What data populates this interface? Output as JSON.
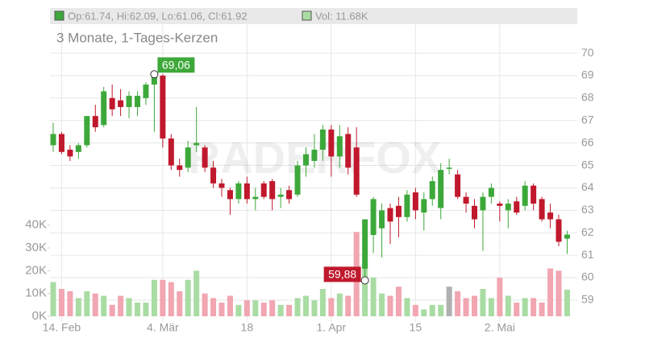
{
  "chart_data": {
    "type": "candlestick",
    "title": "3 Monate, 1-Tages-Kerzen",
    "header": [
      "Op:61.74, Hi:62.09, Lo:61.06, Cl:61.92",
      "Vol: 11.68K"
    ],
    "watermark": "RADERFOX",
    "categories": [
      null,
      "14. Feb",
      null,
      null,
      null,
      null,
      null,
      null,
      null,
      null,
      null,
      null,
      null,
      "4. Mär",
      null,
      null,
      null,
      null,
      null,
      null,
      null,
      null,
      null,
      "18",
      null,
      null,
      null,
      null,
      null,
      null,
      null,
      null,
      null,
      "1. Apr",
      null,
      null,
      null,
      null,
      null,
      null,
      null,
      null,
      null,
      "15",
      null,
      null,
      null,
      null,
      null,
      null,
      null,
      null,
      null,
      "2. Mai",
      null,
      null,
      null,
      null,
      null,
      null,
      null,
      null
    ],
    "open": [
      65.9,
      66.4,
      65.7,
      65.6,
      65.9,
      67.2,
      66.8,
      68.0,
      67.9,
      67.6,
      67.6,
      68.0,
      68.6,
      69.0,
      66.2,
      65.0,
      64.9,
      65.9,
      65.8,
      64.9,
      64.2,
      63.9,
      63.5,
      64.2,
      63.5,
      64.2,
      64.3,
      63.6,
      63.9,
      63.7,
      65.0,
      65.2,
      65.7,
      66.6,
      65.4,
      66.4,
      65.8,
      60.4,
      61.9,
      62.2,
      63.1,
      63.2,
      62.7,
      63.8,
      62.9,
      63.5,
      63.1,
      64.9,
      64.6,
      63.6,
      63.2,
      63.0,
      63.6,
      63.3,
      63.0,
      63.4,
      63.2,
      64.1,
      63.5,
      62.9,
      62.6,
      61.74
    ],
    "high": [
      66.9,
      66.5,
      65.9,
      66.0,
      67.2,
      67.7,
      68.5,
      68.6,
      68.4,
      68.3,
      68.3,
      68.7,
      69.06,
      69.06,
      66.4,
      65.3,
      66.1,
      67.6,
      65.9,
      65.2,
      64.4,
      64.0,
      64.3,
      64.5,
      64.0,
      64.3,
      64.4,
      64.0,
      64.1,
      65.2,
      65.8,
      66.4,
      66.8,
      66.8,
      66.8,
      66.7,
      66.7,
      62.6,
      63.6,
      63.3,
      63.3,
      63.6,
      63.9,
      64.0,
      63.8,
      64.5,
      65.1,
      65.3,
      64.8,
      63.8,
      63.5,
      63.8,
      64.2,
      63.4,
      63.5,
      63.6,
      64.3,
      64.2,
      63.6,
      63.3,
      62.8,
      62.09
    ],
    "low": [
      65.6,
      65.5,
      65.2,
      65.3,
      65.8,
      66.5,
      66.7,
      67.2,
      67.2,
      67.1,
      67.2,
      67.7,
      66.5,
      65.8,
      64.8,
      64.5,
      64.7,
      65.6,
      64.7,
      64.0,
      63.6,
      62.8,
      63.3,
      63.3,
      63.0,
      63.5,
      63.0,
      63.1,
      63.3,
      63.6,
      64.5,
      64.9,
      65.2,
      64.5,
      64.9,
      64.6,
      63.6,
      59.88,
      61.1,
      60.9,
      61.5,
      61.8,
      62.5,
      62.6,
      62.1,
      63.2,
      62.6,
      64.6,
      63.5,
      62.9,
      62.2,
      61.2,
      63.3,
      62.5,
      62.2,
      62.8,
      63.0,
      63.0,
      62.5,
      62.2,
      61.4,
      61.06
    ],
    "close": [
      66.4,
      65.6,
      65.4,
      65.9,
      67.2,
      66.7,
      68.3,
      67.5,
      67.6,
      68.1,
      68.1,
      68.6,
      69.0,
      66.2,
      65.0,
      64.8,
      65.8,
      66.0,
      64.9,
      64.2,
      64.0,
      63.5,
      64.2,
      63.5,
      63.6,
      63.6,
      63.5,
      63.7,
      63.5,
      65.0,
      65.5,
      65.7,
      66.6,
      65.4,
      66.3,
      64.9,
      63.7,
      62.6,
      63.5,
      63.0,
      62.5,
      62.7,
      63.7,
      63.0,
      63.5,
      64.3,
      64.8,
      64.9,
      63.6,
      63.3,
      62.6,
      63.6,
      64.0,
      63.2,
      63.3,
      62.9,
      64.1,
      63.3,
      62.6,
      62.6,
      61.6,
      61.92
    ],
    "volume": [
      15000,
      12000,
      11000,
      8000,
      11000,
      10000,
      9000,
      5000,
      9000,
      8000,
      6000,
      6000,
      16000,
      16000,
      15000,
      11000,
      16000,
      20000,
      10000,
      8000,
      6000,
      9000,
      5000,
      7000,
      7000,
      6000,
      7000,
      5000,
      5000,
      8000,
      9000,
      7000,
      12000,
      8000,
      10000,
      9000,
      37000,
      23000,
      17000,
      10000,
      9000,
      13000,
      8000,
      5000,
      3000,
      5000,
      5000,
      13000,
      11000,
      8000,
      9000,
      12000,
      8000,
      17000,
      9000,
      6000,
      8000,
      8000,
      6000,
      21000,
      20000,
      11680
    ],
    "ylim": [
      58.03,
      72.01
    ],
    "yticks": [
      59,
      60,
      61,
      62,
      63,
      64,
      65,
      66,
      67,
      68,
      69,
      70
    ],
    "y2lim": [
      -2470,
      135300
    ],
    "y2ticks": [
      {
        "value": 0,
        "label": "0K"
      },
      {
        "value": 10000,
        "label": "10K"
      },
      {
        "value": 20000,
        "label": "20K"
      },
      {
        "value": 30000,
        "label": "30K"
      },
      {
        "value": 40000,
        "label": "40K"
      }
    ],
    "annotations": [
      {
        "value": 69.06,
        "label": "69,06"
      },
      {
        "value": 59.88,
        "label": "59,88"
      }
    ],
    "up_color": "#3da83a",
    "down_color": "#c0182c",
    "up_volume_color": "#a9dca3",
    "down_volume_color": "#f1a6b1",
    "flat_volume_color": "#b0b0b0",
    "grid": true
  }
}
